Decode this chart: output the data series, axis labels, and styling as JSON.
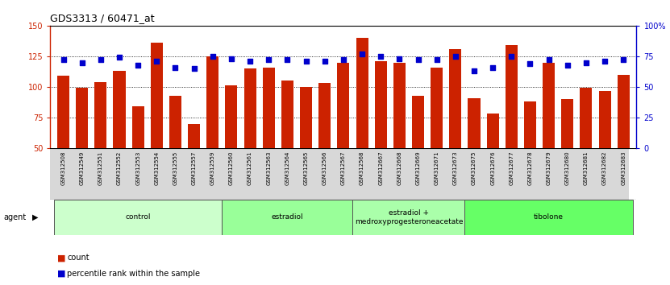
{
  "title": "GDS3313 / 60471_at",
  "samples": [
    "GSM312508",
    "GSM312549",
    "GSM312551",
    "GSM312552",
    "GSM312553",
    "GSM312554",
    "GSM312555",
    "GSM312557",
    "GSM312559",
    "GSM312560",
    "GSM312561",
    "GSM312563",
    "GSM312564",
    "GSM312565",
    "GSM312566",
    "GSM312567",
    "GSM312568",
    "GSM312667",
    "GSM312668",
    "GSM312669",
    "GSM312671",
    "GSM312673",
    "GSM312675",
    "GSM312676",
    "GSM312677",
    "GSM312678",
    "GSM312679",
    "GSM312680",
    "GSM312681",
    "GSM312682",
    "GSM312683"
  ],
  "counts": [
    109,
    99,
    104,
    113,
    84,
    136,
    93,
    70,
    125,
    101,
    115,
    116,
    105,
    100,
    103,
    120,
    140,
    121,
    120,
    93,
    116,
    131,
    91,
    78,
    134,
    88,
    120,
    90,
    99,
    97,
    110
  ],
  "percentiles": [
    72,
    70,
    72,
    74,
    68,
    71,
    66,
    65,
    75,
    73,
    71,
    72,
    72,
    71,
    71,
    72,
    77,
    75,
    73,
    72,
    72,
    75,
    63,
    66,
    75,
    69,
    72,
    68,
    70,
    71,
    72
  ],
  "groups": [
    {
      "label": "control",
      "start": 0,
      "end": 8,
      "color": "#ccffcc"
    },
    {
      "label": "estradiol",
      "start": 9,
      "end": 15,
      "color": "#99ff99"
    },
    {
      "label": "estradiol +\nmedroxyprogesteroneacetate",
      "start": 16,
      "end": 21,
      "color": "#aaffaa"
    },
    {
      "label": "tibolone",
      "start": 22,
      "end": 30,
      "color": "#66ff66"
    }
  ],
  "ylim": [
    50,
    150
  ],
  "yticks": [
    50,
    75,
    100,
    125,
    150
  ],
  "y2lim": [
    0,
    100
  ],
  "y2ticks": [
    0,
    25,
    50,
    75,
    100
  ],
  "bar_color": "#cc2200",
  "dot_color": "#0000cc",
  "bar_width": 0.65,
  "left_axis_color": "#cc2200",
  "right_axis_color": "#0000cc",
  "dotted_lines": [
    75,
    100,
    125
  ]
}
